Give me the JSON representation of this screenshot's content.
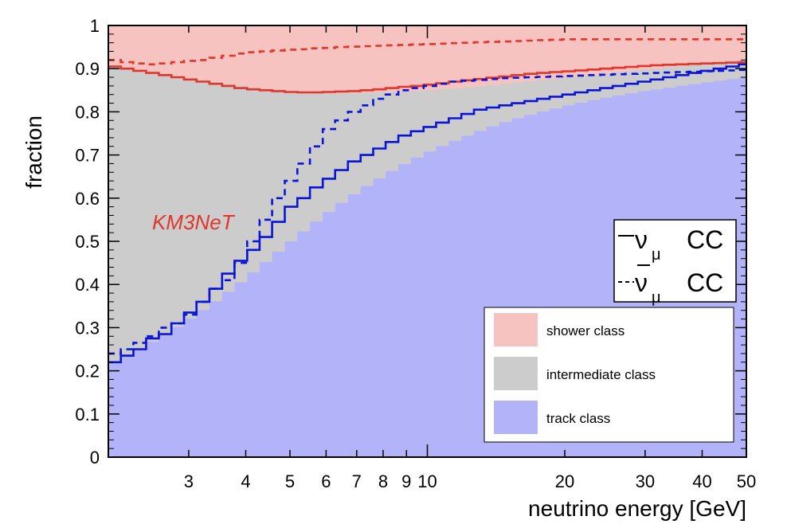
{
  "chart_data": {
    "type": "area",
    "xlabel": "neutrino energy [GeV]",
    "ylabel": "fraction",
    "x_scale": "log",
    "xlim": [
      2,
      50
    ],
    "ylim": [
      0,
      1
    ],
    "x_tick_labels": [
      "3",
      "4",
      "5",
      "6",
      "7",
      "8",
      "9",
      "10",
      "20",
      "30",
      "40",
      "50"
    ],
    "y_tick_labels": [
      "0",
      "0.1",
      "0.2",
      "0.3",
      "0.4",
      "0.5",
      "0.6",
      "0.7",
      "0.8",
      "0.9",
      "1"
    ],
    "bin_edges": [
      2.0,
      2.13,
      2.27,
      2.42,
      2.58,
      2.75,
      2.93,
      3.12,
      3.33,
      3.55,
      3.78,
      4.03,
      4.29,
      4.57,
      4.87,
      5.19,
      5.53,
      5.9,
      6.28,
      6.7,
      7.14,
      7.61,
      8.1,
      8.64,
      9.2,
      9.81,
      10.45,
      11.14,
      11.87,
      12.65,
      13.48,
      14.37,
      15.31,
      16.32,
      17.39,
      18.53,
      19.75,
      21.05,
      22.43,
      23.9,
      25.47,
      27.15,
      28.93,
      30.83,
      32.86,
      35.02,
      37.32,
      39.77,
      42.38,
      45.17,
      48.13,
      50.0
    ],
    "series": [
      {
        "name": "track class",
        "style": "fill",
        "color": "#b3b3fa",
        "values": [
          0.22,
          0.235,
          0.25,
          0.267,
          0.284,
          0.302,
          0.321,
          0.341,
          0.361,
          0.383,
          0.405,
          0.428,
          0.452,
          0.476,
          0.5,
          0.523,
          0.546,
          0.568,
          0.589,
          0.609,
          0.628,
          0.646,
          0.663,
          0.679,
          0.694,
          0.708,
          0.721,
          0.733,
          0.745,
          0.756,
          0.766,
          0.776,
          0.785,
          0.793,
          0.801,
          0.808,
          0.815,
          0.821,
          0.827,
          0.833,
          0.838,
          0.843,
          0.848,
          0.852,
          0.856,
          0.86,
          0.864,
          0.868,
          0.872,
          0.876,
          0.88
        ]
      },
      {
        "name": "intermediate class",
        "style": "fill",
        "color": "#cccccc",
        "values": [
          0.905,
          0.9,
          0.896,
          0.892,
          0.888,
          0.884,
          0.879,
          0.874,
          0.869,
          0.865,
          0.861,
          0.857,
          0.853,
          0.85,
          0.847,
          0.845,
          0.844,
          0.843,
          0.843,
          0.843,
          0.844,
          0.845,
          0.846,
          0.847,
          0.848,
          0.85,
          0.852,
          0.854,
          0.856,
          0.859,
          0.862,
          0.865,
          0.868,
          0.871,
          0.874,
          0.877,
          0.88,
          0.883,
          0.886,
          0.889,
          0.892,
          0.895,
          0.898,
          0.9,
          0.903,
          0.906,
          0.909,
          0.912,
          0.915,
          0.918,
          0.92
        ]
      },
      {
        "name": "shower class",
        "style": "fill",
        "color": "#f6c3c0",
        "values": [
          1,
          1,
          1,
          1,
          1,
          1,
          1,
          1,
          1,
          1,
          1,
          1,
          1,
          1,
          1,
          1,
          1,
          1,
          1,
          1,
          1,
          1,
          1,
          1,
          1,
          1,
          1,
          1,
          1,
          1,
          1,
          1,
          1,
          1,
          1,
          1,
          1,
          1,
          1,
          1,
          1,
          1,
          1,
          1,
          1,
          1,
          1,
          1,
          1,
          1,
          1
        ]
      },
      {
        "name": "νμ CC track",
        "style": "solid",
        "color": "#0a14d6",
        "values": [
          0.22,
          0.235,
          0.25,
          0.275,
          0.285,
          0.31,
          0.335,
          0.36,
          0.39,
          0.425,
          0.455,
          0.48,
          0.51,
          0.545,
          0.58,
          0.6,
          0.625,
          0.645,
          0.665,
          0.685,
          0.7,
          0.715,
          0.73,
          0.745,
          0.755,
          0.765,
          0.775,
          0.785,
          0.795,
          0.805,
          0.81,
          0.815,
          0.82,
          0.825,
          0.83,
          0.835,
          0.84,
          0.845,
          0.85,
          0.855,
          0.86,
          0.865,
          0.87,
          0.875,
          0.88,
          0.885,
          0.89,
          0.895,
          0.9,
          0.905,
          0.91
        ]
      },
      {
        "name": "νμ CC shower edge",
        "style": "solid",
        "color": "#e0362b",
        "values": [
          0.905,
          0.9,
          0.895,
          0.89,
          0.885,
          0.88,
          0.875,
          0.87,
          0.865,
          0.86,
          0.855,
          0.852,
          0.85,
          0.848,
          0.846,
          0.845,
          0.845,
          0.846,
          0.847,
          0.848,
          0.85,
          0.852,
          0.855,
          0.858,
          0.86,
          0.863,
          0.866,
          0.87,
          0.873,
          0.876,
          0.879,
          0.882,
          0.885,
          0.888,
          0.89,
          0.892,
          0.894,
          0.896,
          0.898,
          0.9,
          0.902,
          0.904,
          0.906,
          0.908,
          0.909,
          0.91,
          0.911,
          0.912,
          0.913,
          0.914,
          0.915
        ]
      },
      {
        "name": "anti-νμ CC track",
        "style": "dashed",
        "color": "#0a14d6",
        "values": [
          0.24,
          0.25,
          0.265,
          0.28,
          0.3,
          0.31,
          0.33,
          0.36,
          0.39,
          0.41,
          0.45,
          0.5,
          0.55,
          0.6,
          0.64,
          0.68,
          0.72,
          0.76,
          0.78,
          0.8,
          0.815,
          0.83,
          0.84,
          0.85,
          0.855,
          0.86,
          0.865,
          0.87,
          0.872,
          0.874,
          0.876,
          0.878,
          0.879,
          0.88,
          0.881,
          0.882,
          0.883,
          0.884,
          0.885,
          0.886,
          0.887,
          0.888,
          0.889,
          0.89,
          0.891,
          0.892,
          0.893,
          0.894,
          0.895,
          0.896,
          0.897
        ]
      },
      {
        "name": "anti-νμ CC shower edge",
        "style": "dashed",
        "color": "#e0362b",
        "values": [
          0.92,
          0.915,
          0.912,
          0.91,
          0.912,
          0.915,
          0.918,
          0.92,
          0.925,
          0.93,
          0.935,
          0.938,
          0.94,
          0.942,
          0.944,
          0.945,
          0.947,
          0.948,
          0.95,
          0.951,
          0.952,
          0.953,
          0.954,
          0.955,
          0.956,
          0.957,
          0.958,
          0.959,
          0.96,
          0.961,
          0.962,
          0.963,
          0.964,
          0.965,
          0.966,
          0.967,
          0.968,
          0.968,
          0.968,
          0.968,
          0.968,
          0.968,
          0.968,
          0.968,
          0.968,
          0.968,
          0.968,
          0.968,
          0.968,
          0.968,
          0.968
        ]
      }
    ],
    "annotation": "KM3NeT",
    "legend_box": {
      "placement": "right",
      "items": [
        {
          "label": "shower class",
          "color": "#f6c3c0"
        },
        {
          "label": "intermediate class",
          "color": "#cccccc"
        },
        {
          "label": "track class",
          "color": "#b3b3fa"
        }
      ]
    },
    "nu_legend": {
      "placement": "top-right",
      "symbol": "ν",
      "subscript": "μ",
      "label": "CC",
      "solid_dash": "—",
      "dashed_dash": "- -"
    }
  }
}
